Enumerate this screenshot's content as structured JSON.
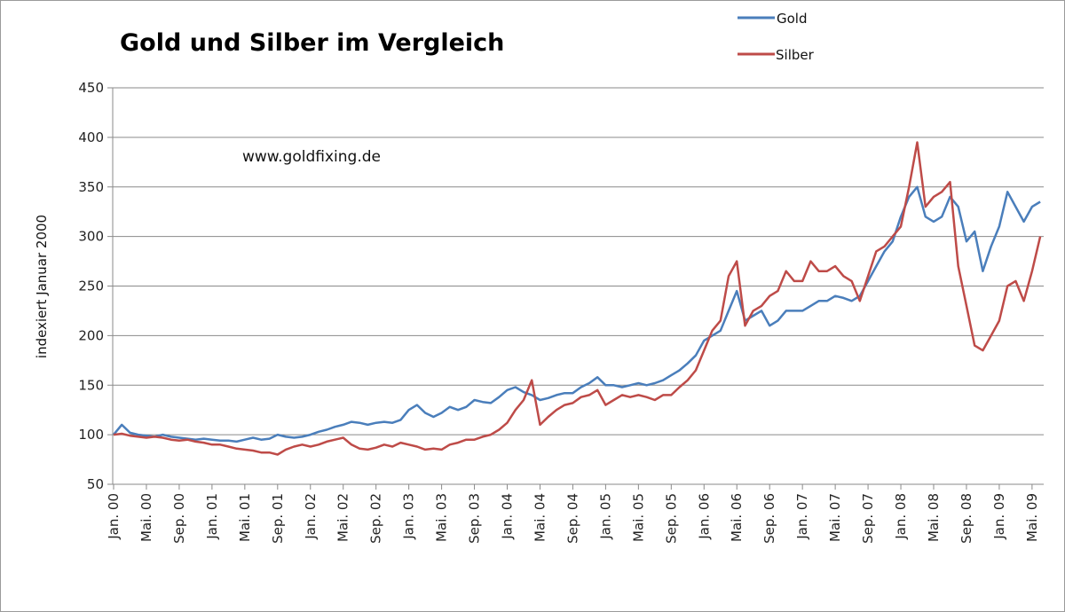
{
  "chart_data": {
    "type": "line",
    "title": "Gold und Silber im Vergleich",
    "annotation": "www.goldfixing.de",
    "xlabel": "",
    "ylabel": "indexiert Januar 2000",
    "ylim": [
      50,
      450
    ],
    "yticks": [
      50,
      100,
      150,
      200,
      250,
      300,
      350,
      400,
      450
    ],
    "grid": true,
    "legend_position": "top-right",
    "xtick_labels": [
      "Jan. 00",
      "Mai. 00",
      "Sep. 00",
      "Jan. 01",
      "Mai. 01",
      "Sep. 01",
      "Jan. 02",
      "Mai. 02",
      "Sep. 02",
      "Jan. 03",
      "Mai. 03",
      "Sep. 03",
      "Jan. 04",
      "Mai. 04",
      "Sep. 04",
      "Jan. 05",
      "Mai. 05",
      "Sep. 05",
      "Jan. 06",
      "Mai. 06",
      "Sep. 06",
      "Jan. 07",
      "Mai. 07",
      "Sep. 07",
      "Jan. 08",
      "Mai. 08",
      "Sep. 08",
      "Jan. 09",
      "Mai. 09"
    ],
    "x_start": "2000-01",
    "x_step": "1 month",
    "series": [
      {
        "name": "Gold",
        "color": "#4a7ebb",
        "values": [
          100,
          110,
          102,
          100,
          99,
          98,
          100,
          98,
          97,
          96,
          95,
          96,
          95,
          94,
          94,
          93,
          95,
          97,
          95,
          96,
          100,
          98,
          97,
          98,
          100,
          103,
          105,
          108,
          110,
          113,
          112,
          110,
          112,
          113,
          112,
          115,
          125,
          130,
          122,
          118,
          122,
          128,
          125,
          128,
          135,
          133,
          132,
          138,
          145,
          148,
          143,
          140,
          135,
          137,
          140,
          142,
          142,
          148,
          152,
          158,
          150,
          150,
          148,
          150,
          152,
          150,
          152,
          155,
          160,
          165,
          172,
          180,
          195,
          200,
          205,
          225,
          245,
          215,
          220,
          225,
          210,
          215,
          225,
          225,
          225,
          230,
          235,
          235,
          240,
          238,
          235,
          240,
          255,
          270,
          285,
          295,
          320,
          340,
          350,
          320,
          315,
          320,
          340,
          330,
          295,
          305,
          265,
          290,
          310,
          345,
          330,
          315,
          330,
          335
        ]
      },
      {
        "name": "Silber",
        "color": "#be4b48",
        "values": [
          100,
          101,
          99,
          98,
          97,
          98,
          97,
          95,
          94,
          95,
          93,
          92,
          90,
          90,
          88,
          86,
          85,
          84,
          82,
          82,
          80,
          85,
          88,
          90,
          88,
          90,
          93,
          95,
          97,
          90,
          86,
          85,
          87,
          90,
          88,
          92,
          90,
          88,
          85,
          86,
          85,
          90,
          92,
          95,
          95,
          98,
          100,
          105,
          112,
          125,
          135,
          155,
          110,
          118,
          125,
          130,
          132,
          138,
          140,
          145,
          130,
          135,
          140,
          138,
          140,
          138,
          135,
          140,
          140,
          148,
          155,
          165,
          185,
          205,
          215,
          260,
          275,
          210,
          225,
          230,
          240,
          245,
          265,
          255,
          255,
          275,
          265,
          265,
          270,
          260,
          255,
          235,
          260,
          285,
          290,
          300,
          310,
          350,
          395,
          330,
          340,
          345,
          355,
          270,
          230,
          190,
          185,
          200,
          215,
          250,
          255,
          235,
          265,
          300
        ]
      }
    ]
  }
}
